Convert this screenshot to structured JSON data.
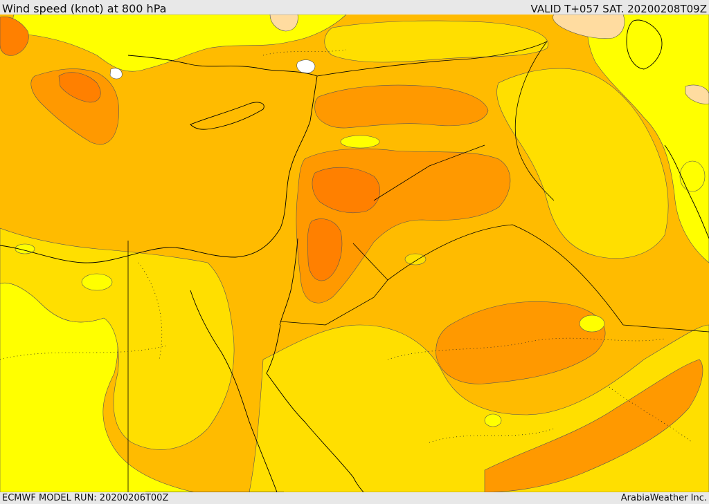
{
  "header": {
    "title": "Wind speed (knot) at 800 hPa",
    "valid": "VALID T+057 SAT. 20200208T09Z"
  },
  "footer": {
    "model_run": "ECMWF MODEL RUN: 20200206T00Z",
    "credit": "ArabiaWeather Inc."
  },
  "colors": {
    "lowest": "#ffff00",
    "low": "#ffdf00",
    "mid": "#ffbb00",
    "high": "#ff9900",
    "higher": "#ff8000",
    "calm_patch": "#ffdca0",
    "still_patch": "#ffffff",
    "border": "#000000"
  }
}
